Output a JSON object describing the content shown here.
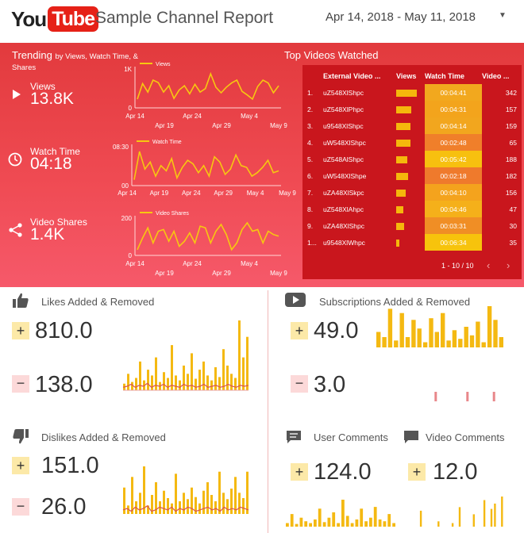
{
  "header": {
    "logo_you": "You",
    "logo_tube": "Tube",
    "title": "Sample Channel Report",
    "date_range": "Apr 14, 2018 - May 11, 2018"
  },
  "trending": {
    "title": "Trending",
    "subtitle": "by Views, Watch Time, &",
    "subtitle2": "Shares",
    "metrics": [
      {
        "label": "Views",
        "value": "13.8K",
        "icon": "play-icon"
      },
      {
        "label": "Watch Time",
        "value": "04:18",
        "icon": "clock-icon"
      },
      {
        "label": "Video Shares",
        "value": "1.4K",
        "icon": "share-icon"
      }
    ]
  },
  "chart_data": [
    {
      "type": "line",
      "legend": "Views",
      "ylim": [
        0,
        1000
      ],
      "y_ticks": [
        "1K",
        "0"
      ],
      "x_ticks_top": [
        "Apr 14",
        "Apr 24",
        "May 4"
      ],
      "x_ticks_bottom": [
        "Apr 19",
        "Apr 29",
        "May 9"
      ],
      "values": [
        180,
        620,
        380,
        720,
        650,
        380,
        560,
        200,
        440,
        560,
        330,
        600,
        380,
        480,
        900,
        520,
        360,
        520,
        640,
        720,
        400,
        300,
        180,
        540,
        720,
        640,
        360,
        560
      ]
    },
    {
      "type": "line",
      "legend": "Watch Time",
      "y_ticks": [
        "08:30",
        "00"
      ],
      "x_ticks": [
        "Apr 14",
        "Apr 19",
        "Apr 24",
        "Apr 29",
        "May 4",
        "May 9"
      ],
      "values": [
        10,
        90,
        40,
        60,
        20,
        50,
        35,
        70,
        15,
        45,
        65,
        55,
        30,
        50,
        20,
        75,
        60,
        25,
        40,
        80,
        50,
        45,
        20,
        30,
        45,
        65,
        30,
        35
      ]
    },
    {
      "type": "line",
      "legend": "Video Shares",
      "ylim": [
        0,
        200
      ],
      "y_ticks": [
        "200",
        "0"
      ],
      "x_ticks_top": [
        "Apr 14",
        "Apr 24",
        "May 4"
      ],
      "x_ticks_bottom": [
        "Apr 19",
        "Apr 29",
        "May 9"
      ],
      "values": [
        20,
        90,
        150,
        60,
        130,
        140,
        70,
        130,
        40,
        70,
        120,
        60,
        160,
        150,
        60,
        130,
        170,
        110,
        20,
        60,
        140,
        180,
        130,
        140,
        60,
        130,
        110,
        100
      ]
    }
  ],
  "top_videos": {
    "title": "Top Videos Watched",
    "columns": [
      "External Video ...",
      "Views",
      "Watch Time",
      "Video ..."
    ],
    "rows": [
      {
        "n": "1.",
        "id": "uZ548XlShpc",
        "bar": 0.8,
        "wt": "00:04:41",
        "v": "342"
      },
      {
        "n": "2.",
        "id": "uZ548XlPhpc",
        "bar": 0.58,
        "wt": "00:04:31",
        "v": "157"
      },
      {
        "n": "3.",
        "id": "u9548XlShpc",
        "bar": 0.55,
        "wt": "00:04:14",
        "v": "159"
      },
      {
        "n": "4.",
        "id": "uW548XlShpc",
        "bar": 0.55,
        "wt": "00:02:48",
        "v": "65"
      },
      {
        "n": "5.",
        "id": "uZ548AlShpc",
        "bar": 0.45,
        "wt": "00:05:42",
        "v": "188"
      },
      {
        "n": "6.",
        "id": "uW548XlShpe",
        "bar": 0.48,
        "wt": "00:02:18",
        "v": "182"
      },
      {
        "n": "7.",
        "id": "uZA48XlSkpc",
        "bar": 0.38,
        "wt": "00:04:10",
        "v": "156"
      },
      {
        "n": "8.",
        "id": "uZ548XlAhpc",
        "bar": 0.28,
        "wt": "00:04:46",
        "v": "47"
      },
      {
        "n": "9.",
        "id": "uZA48XlShpc",
        "bar": 0.32,
        "wt": "00:03:31",
        "v": "30"
      },
      {
        "n": "1...",
        "id": "u9548XlWhpc",
        "bar": 0.12,
        "wt": "00:06:34",
        "v": "35"
      }
    ],
    "pager": "1 - 10 / 10",
    "wt_colors": [
      "#f2a81e",
      "#f3a41c",
      "#f2a61e",
      "#f07f2a",
      "#f7c00f",
      "#ef7a2c",
      "#f4a31d",
      "#f5b01a",
      "#f08e25",
      "#f7c30c"
    ]
  },
  "sections": {
    "likes": {
      "title": "Likes Added & Removed",
      "added": "810.0",
      "removed": "138.0"
    },
    "subs": {
      "title": "Subscriptions Added & Removed",
      "added": "49.0",
      "removed": "3.0"
    },
    "dislikes": {
      "title": "Dislikes Added & Removed",
      "added": "151.0",
      "removed": "26.0"
    },
    "user_comments": {
      "title": "User Comments",
      "value": "124.0"
    },
    "video_comments": {
      "title": "Video Comments",
      "value": "12.0"
    }
  },
  "spark": {
    "likes_bars": [
      8,
      20,
      10,
      15,
      35,
      12,
      25,
      18,
      40,
      10,
      22,
      15,
      55,
      18,
      12,
      30,
      20,
      45,
      14,
      25,
      35,
      18,
      12,
      28,
      16,
      50,
      30,
      20,
      15,
      85,
      40,
      65
    ],
    "likes_line": [
      3,
      4,
      6,
      3,
      5,
      4,
      7,
      3,
      5,
      4,
      6,
      3,
      5,
      4,
      3,
      6,
      4,
      5,
      3,
      4,
      6,
      3,
      4,
      5,
      3,
      4,
      6,
      4,
      3,
      5,
      4,
      5
    ],
    "subs_bars": [
      18,
      12,
      45,
      8,
      40,
      12,
      32,
      22,
      6,
      34,
      18,
      40,
      8,
      20,
      10,
      24,
      14,
      30,
      6,
      48,
      32,
      12
    ],
    "subs_removed": [
      0,
      0,
      0,
      0,
      0,
      0,
      0,
      0,
      0,
      0,
      0,
      1,
      0,
      0,
      0,
      0,
      0,
      1,
      0,
      0,
      0,
      0,
      1,
      0
    ],
    "dislikes_bars": [
      25,
      8,
      35,
      12,
      20,
      45,
      8,
      18,
      30,
      12,
      22,
      15,
      10,
      38,
      12,
      20,
      14,
      25,
      16,
      10,
      22,
      30,
      18,
      12,
      40,
      20,
      14,
      24,
      35,
      20,
      15,
      40
    ],
    "dislikes_line": [
      3,
      4,
      2,
      5,
      3,
      4,
      6,
      2,
      3,
      5,
      4,
      3,
      5,
      2,
      4,
      3,
      5,
      4,
      2,
      3,
      4,
      5,
      3,
      4,
      2,
      5,
      3,
      4,
      3,
      5,
      4,
      3
    ],
    "uc_bars": [
      4,
      14,
      3,
      10,
      6,
      4,
      8,
      20,
      5,
      10,
      16,
      4,
      30,
      12,
      4,
      8,
      20,
      6,
      10,
      22,
      8,
      6,
      14,
      4
    ],
    "vc_bars": [
      0,
      0,
      18,
      0,
      0,
      0,
      0,
      6,
      0,
      0,
      0,
      4,
      0,
      22,
      0,
      0,
      0,
      14,
      0,
      0,
      30,
      0,
      20,
      26,
      0,
      34,
      0
    ]
  }
}
